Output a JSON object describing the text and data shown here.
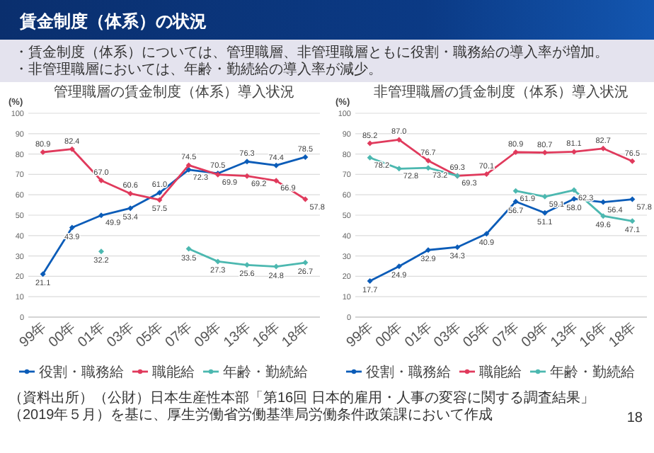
{
  "chart_data": [
    {
      "type": "other",
      "title": "賃金制度（体系）の状況",
      "annotations": [
        "・賃金制度（体系）については、管理職層、非管理職層ともに役割・職務給の導入率が増加。",
        "・非管理職層においては、年齢・勤続給の導入率が減少。",
        "（資料出所）（公財）日本生産性本部「第16回 日本的雇用・人事の変容に関する調査結果」（2019年５月）を基に、厚生労働省労働基準局労働条件政策課において作成",
        "18"
      ]
    },
    {
      "type": "line",
      "title": "管理職層の賃金制度（体系）導入状況",
      "ylabel": "(%)",
      "categories": [
        "99年",
        "00年",
        "01年",
        "03年",
        "05年",
        "07年",
        "09年",
        "13年",
        "16年",
        "18年"
      ],
      "series": [
        {
          "name": "役割・職務給",
          "color": "#0b5cb8",
          "values": [
            21.1,
            43.9,
            49.9,
            53.4,
            61.0,
            72.3,
            70.5,
            76.3,
            74.4,
            78.5
          ],
          "value_labels": [
            "21.1",
            "43.9",
            "49.9",
            "53.4",
            "61.0",
            "72.3",
            "70.5",
            "76.3",
            "74.4",
            "78.5"
          ]
        },
        {
          "name": "職能給",
          "color": "#e03a5c",
          "values": [
            80.9,
            82.4,
            67.0,
            60.6,
            57.5,
            74.5,
            69.9,
            69.2,
            66.9,
            57.8
          ],
          "value_labels": [
            "80.9",
            "82.4",
            "67.0",
            "60.6",
            "57.5",
            "74.5",
            "69.9",
            "69.2",
            "66.9",
            "57.8"
          ]
        },
        {
          "name": "年齢・勤続給",
          "color": "#4cb8b0",
          "values": [
            null,
            null,
            32.2,
            null,
            null,
            33.5,
            27.3,
            25.6,
            24.8,
            26.7
          ],
          "value_labels": [
            null,
            null,
            "32.2",
            null,
            null,
            "33.5",
            "27.3",
            "25.6",
            "24.8",
            "26.7"
          ]
        }
      ],
      "ylim": [
        0,
        100
      ],
      "yticks": [
        0,
        10,
        20,
        30,
        40,
        50,
        60,
        70,
        80,
        90,
        100
      ],
      "grid": "y",
      "legend": "bottom",
      "marker": "diamond",
      "line_style": "solid"
    },
    {
      "type": "line",
      "title": "非管理職層の賃金制度（体系）導入状況",
      "ylabel": "(%)",
      "categories": [
        "99年",
        "00年",
        "01年",
        "03年",
        "05年",
        "07年",
        "09年",
        "13年",
        "16年",
        "18年"
      ],
      "series": [
        {
          "name": "役割・職務給",
          "color": "#0b5cb8",
          "values": [
            17.7,
            24.9,
            32.9,
            34.3,
            40.9,
            56.7,
            51.1,
            58.0,
            56.4,
            57.8
          ],
          "value_labels": [
            "17.7",
            "24.9",
            "32.9",
            "34.3",
            "40.9",
            "56.7",
            "51.1",
            "58.0",
            "56.4",
            "57.8"
          ]
        },
        {
          "name": "職能給",
          "color": "#e03a5c",
          "values": [
            85.2,
            87.0,
            76.7,
            69.3,
            70.1,
            80.9,
            80.7,
            81.1,
            82.7,
            76.5
          ],
          "value_labels": [
            "85.2",
            "87.0",
            "76.7",
            "69.3",
            "70.1",
            "80.9",
            "80.7",
            "81.1",
            "82.7",
            "76.5"
          ]
        },
        {
          "name": "年齢・勤続給",
          "color": "#4cb8b0",
          "values": [
            78.2,
            72.8,
            73.2,
            69.3,
            null,
            61.9,
            59.1,
            62.3,
            49.6,
            47.1
          ],
          "value_labels": [
            "78.2",
            "72.8",
            "73.2",
            "69.3",
            null,
            "61.9",
            "59.1",
            "62.3",
            "49.6",
            "47.1"
          ]
        }
      ],
      "ylim": [
        0,
        100
      ],
      "yticks": [
        0,
        10,
        20,
        30,
        40,
        50,
        60,
        70,
        80,
        90,
        100
      ],
      "grid": "y",
      "legend": "bottom",
      "marker": "diamond",
      "line_style": "solid"
    }
  ]
}
